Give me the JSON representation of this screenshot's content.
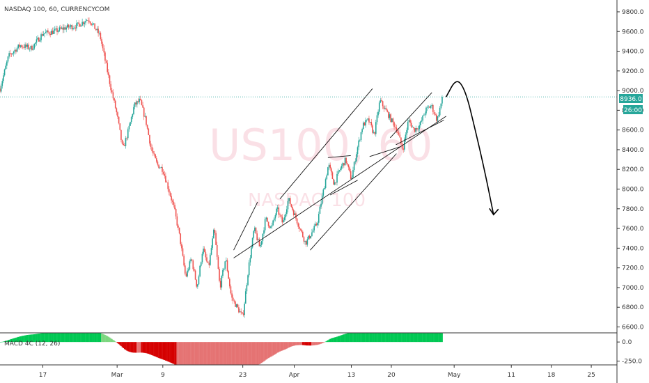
{
  "header": {
    "title": "NASDAQ 100, 60, CURRENCYCOM"
  },
  "watermark": {
    "line1": "US100, 60",
    "line2": "NASDAQ 100"
  },
  "price_badge": {
    "value": "8936.0",
    "color": "#26a69a"
  },
  "countdown_badge": {
    "value": "26:00",
    "color": "#26a69a"
  },
  "indicator": {
    "label": "MACD 4C (12, 26)"
  },
  "colors": {
    "up": "#26a69a",
    "down": "#ef5350",
    "hist_up": "#00c853",
    "hist_down": "#d50000"
  },
  "chart_data": {
    "type": "candlestick",
    "title": "NASDAQ 100, 60, CURRENCYCOM",
    "x_tick_labels": [
      "17",
      "Mar",
      "9",
      "23",
      "Apr",
      "13",
      "20",
      "May",
      "11",
      "18",
      "25"
    ],
    "x_ticks_days": [
      0,
      13,
      21,
      35,
      44,
      54,
      61,
      72,
      82,
      89,
      96
    ],
    "y_tick_labels": [
      "9800.0",
      "9600.0",
      "9400.0",
      "9200.0",
      "9000.0",
      "8800.0",
      "8600.0",
      "8400.0",
      "8200.0",
      "8000.0",
      "7800.0",
      "7600.0",
      "7400.0",
      "7200.0",
      "7000.0",
      "6800.0",
      "6600.0"
    ],
    "ylim": [
      6540,
      9920
    ],
    "xlim_days": [
      -7.5,
      100.5
    ],
    "current_price": 8936.0,
    "price_path": [
      [
        -7.5,
        9020
      ],
      [
        -6,
        9350
      ],
      [
        -4,
        9460
      ],
      [
        -2,
        9430
      ],
      [
        0,
        9580
      ],
      [
        2,
        9600
      ],
      [
        4,
        9640
      ],
      [
        6,
        9660
      ],
      [
        8,
        9730
      ],
      [
        10,
        9560
      ],
      [
        11,
        9280
      ],
      [
        12,
        9000
      ],
      [
        13,
        8750
      ],
      [
        14,
        8400
      ],
      [
        15,
        8600
      ],
      [
        16,
        8850
      ],
      [
        17,
        8900
      ],
      [
        18,
        8700
      ],
      [
        19,
        8400
      ],
      [
        20,
        8250
      ],
      [
        21,
        8200
      ],
      [
        22,
        8000
      ],
      [
        23,
        7800
      ],
      [
        24,
        7500
      ],
      [
        25,
        7100
      ],
      [
        26,
        7300
      ],
      [
        27,
        7000
      ],
      [
        28,
        7400
      ],
      [
        29,
        7200
      ],
      [
        30,
        7600
      ],
      [
        31,
        7000
      ],
      [
        32,
        7300
      ],
      [
        33,
        6900
      ],
      [
        34,
        6800
      ],
      [
        35,
        6700
      ],
      [
        36,
        7200
      ],
      [
        37,
        7600
      ],
      [
        38,
        7400
      ],
      [
        39,
        7700
      ],
      [
        40,
        7600
      ],
      [
        41,
        7800
      ],
      [
        42,
        7650
      ],
      [
        43,
        7900
      ],
      [
        44,
        7750
      ],
      [
        45,
        7600
      ],
      [
        46,
        7450
      ],
      [
        47,
        7550
      ],
      [
        48,
        7650
      ],
      [
        49,
        7950
      ],
      [
        50,
        8250
      ],
      [
        51,
        8050
      ],
      [
        52,
        8200
      ],
      [
        53,
        8300
      ],
      [
        54,
        8100
      ],
      [
        55,
        8400
      ],
      [
        56,
        8650
      ],
      [
        57,
        8700
      ],
      [
        58,
        8550
      ],
      [
        59,
        8900
      ],
      [
        60,
        8800
      ],
      [
        61,
        8700
      ],
      [
        62,
        8600
      ],
      [
        63,
        8400
      ],
      [
        64,
        8700
      ],
      [
        65,
        8600
      ],
      [
        66,
        8650
      ],
      [
        67,
        8800
      ],
      [
        68,
        8850
      ],
      [
        69,
        8700
      ],
      [
        70,
        8936
      ]
    ],
    "channel_lines": [
      [
        [
          33.4,
          7300
        ],
        [
          70.6,
          8740
        ]
      ],
      [
        [
          41.5,
          7900
        ],
        [
          57.7,
          9020
        ]
      ],
      [
        [
          33.4,
          7380
        ],
        [
          37.6,
          7870
        ]
      ],
      [
        [
          46.8,
          7380
        ],
        [
          61.9,
          8360
        ]
      ],
      [
        [
          50.3,
          7940
        ],
        [
          55.1,
          8090
        ]
      ],
      [
        [
          49.9,
          8320
        ],
        [
          53.9,
          8340
        ]
      ],
      [
        [
          60.8,
          8520
        ],
        [
          68.1,
          8980
        ]
      ],
      [
        [
          61.8,
          8450
        ],
        [
          70.2,
          8700
        ]
      ],
      [
        [
          57.2,
          8330
        ],
        [
          62.6,
          8430
        ]
      ]
    ],
    "projection": [
      [
        70.6,
        8936
      ],
      [
        72.4,
        9130
      ],
      [
        74.0,
        9000
      ],
      [
        75.7,
        8600
      ],
      [
        77.4,
        8170
      ],
      [
        78.9,
        7740
      ]
    ],
    "macd": {
      "label": "MACD 4C (12, 26)",
      "y_tick_labels": [
        "0.0",
        "-250.0"
      ],
      "ylim": [
        -300,
        120
      ]
    }
  }
}
